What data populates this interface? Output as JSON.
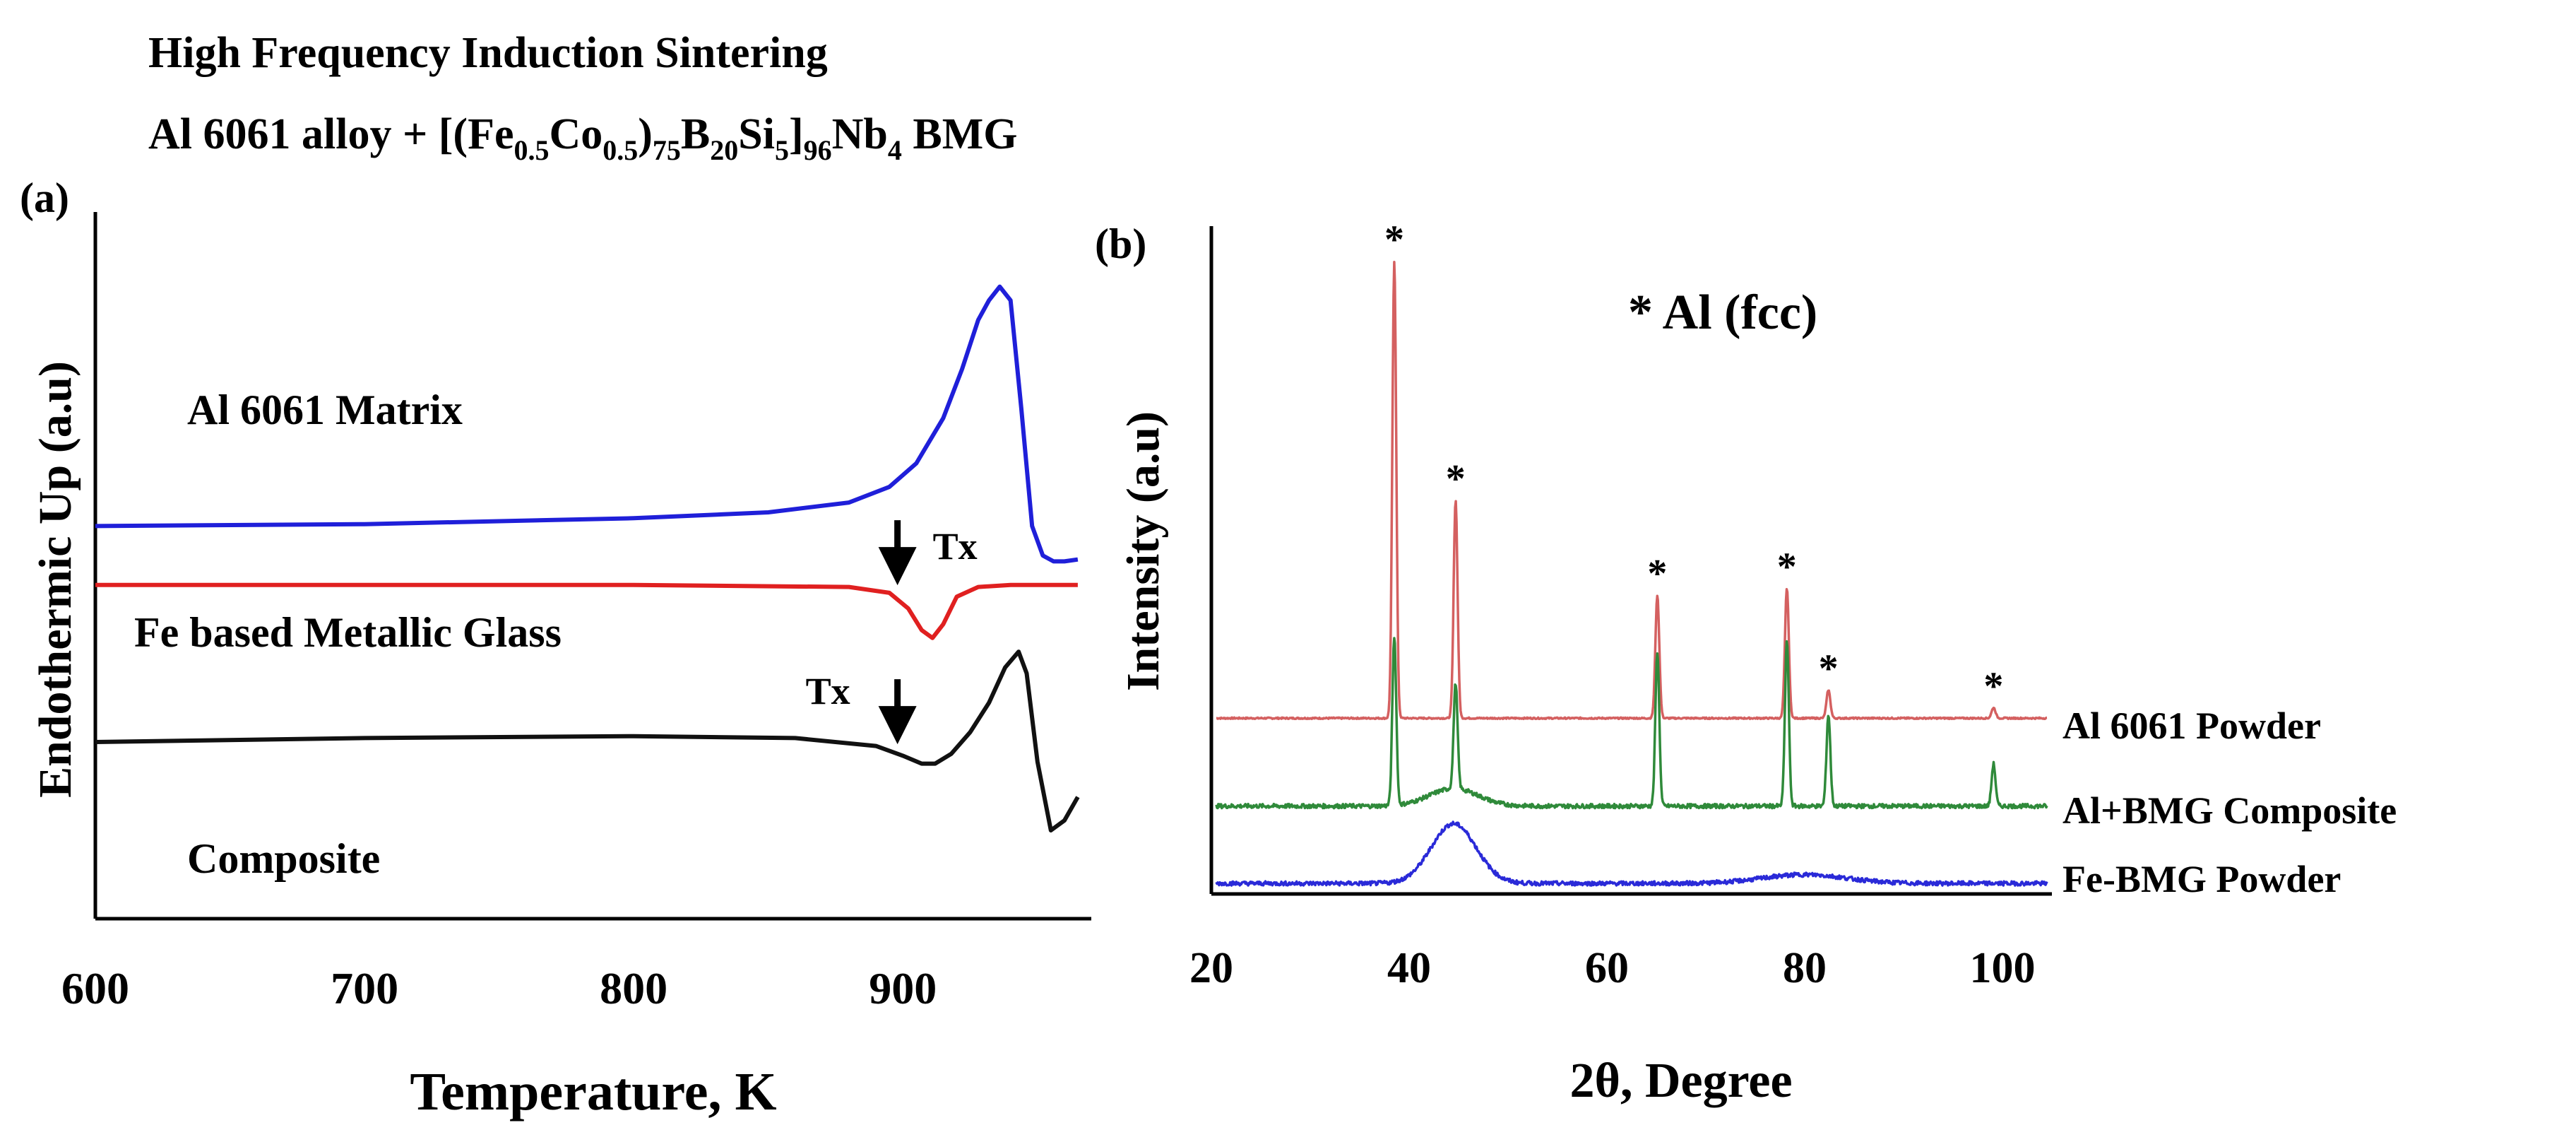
{
  "header": {
    "line1": "High Frequency Induction Sintering",
    "line2": {
      "prefix": "Al 6061 alloy + [(Fe",
      "s1": "0.5",
      "m1": "Co",
      "s2": "0.5",
      "m2": ")",
      "s3": "75",
      "m3": "B",
      "s4": "20",
      "m4": "Si",
      "s5": "5",
      "m5": "]",
      "s6": "96",
      "m6": "Nb",
      "s7": "4",
      "suffix": " BMG"
    }
  },
  "chart_data": [
    {
      "panel": "(a)",
      "type": "line",
      "title": "",
      "xlabel": "Temperature, K",
      "ylabel": "Endothermic Up (a.u)",
      "xlim": [
        600,
        970
      ],
      "xticks": [
        "600",
        "700",
        "800",
        "900"
      ],
      "yticks": [],
      "grid": false,
      "series": [
        {
          "name": "Al 6061 Matrix",
          "color": "#1f1fd9",
          "x": [
            600,
            700,
            800,
            850,
            880,
            895,
            905,
            915,
            922,
            928,
            932,
            936,
            940,
            944,
            948,
            952,
            956,
            960,
            965
          ],
          "y": [
            2.0,
            2.01,
            2.04,
            2.07,
            2.12,
            2.2,
            2.32,
            2.55,
            2.8,
            3.05,
            3.15,
            3.22,
            3.15,
            2.6,
            2.0,
            1.85,
            1.82,
            1.82,
            1.83
          ]
        },
        {
          "name": "Fe based Metallic Glass",
          "color": "#e02020",
          "x": [
            600,
            700,
            800,
            880,
            895,
            902,
            907,
            911,
            915,
            920,
            928,
            940,
            965
          ],
          "y": [
            1.7,
            1.7,
            1.7,
            1.69,
            1.66,
            1.58,
            1.47,
            1.43,
            1.5,
            1.64,
            1.69,
            1.7,
            1.7
          ]
        },
        {
          "name": "Composite",
          "color": "#111111",
          "x": [
            600,
            700,
            800,
            860,
            890,
            900,
            907,
            912,
            918,
            925,
            932,
            938,
            943,
            946,
            950,
            955,
            960,
            965
          ],
          "y": [
            0.9,
            0.92,
            0.93,
            0.92,
            0.88,
            0.83,
            0.79,
            0.79,
            0.84,
            0.95,
            1.1,
            1.28,
            1.36,
            1.25,
            0.8,
            0.45,
            0.5,
            0.62
          ]
        }
      ],
      "annotations": [
        {
          "text": "Tx",
          "x": 898,
          "y": 1.76,
          "arrow": "down"
        },
        {
          "text": "Tx",
          "x": 898,
          "y": 0.95,
          "arrow": "down"
        }
      ]
    },
    {
      "panel": "(b)",
      "type": "line",
      "title": "",
      "xlabel": "2θ, Degree",
      "ylabel": "Intensity (a.u)",
      "xlim": [
        20,
        105
      ],
      "xticks": [
        "20",
        "40",
        "60",
        "80",
        "100"
      ],
      "yticks": [],
      "grid": false,
      "legend_note": "* Al (fcc)",
      "series": [
        {
          "name": "Al 6061 Powder",
          "color": "#d46060",
          "baseline": 0.5,
          "peaks": [
            {
              "pos": 38.5,
              "height": 1.3
            },
            {
              "pos": 44.7,
              "height": 0.62
            },
            {
              "pos": 65.1,
              "height": 0.35
            },
            {
              "pos": 78.2,
              "height": 0.37
            },
            {
              "pos": 82.4,
              "height": 0.08
            },
            {
              "pos": 99.1,
              "height": 0.03
            }
          ]
        },
        {
          "name": "Al+BMG  Composite",
          "color": "#2f8a3a",
          "baseline": 0.25,
          "hump": {
            "pos": 44.5,
            "height": 0.05,
            "width": 3.5
          },
          "peaks": [
            {
              "pos": 38.5,
              "height": 0.48
            },
            {
              "pos": 44.7,
              "height": 0.3
            },
            {
              "pos": 65.1,
              "height": 0.44
            },
            {
              "pos": 78.2,
              "height": 0.47
            },
            {
              "pos": 82.4,
              "height": 0.26
            },
            {
              "pos": 99.1,
              "height": 0.12
            }
          ]
        },
        {
          "name": "Fe-BMG Powder",
          "color": "#2a2ad8",
          "baseline": 0.03,
          "hump": {
            "pos": 44.5,
            "height": 0.17,
            "width": 3.2
          },
          "hump2": {
            "pos": 80,
            "height": 0.025,
            "width": 6
          },
          "peaks": []
        }
      ],
      "peak_markers": [
        {
          "text": "*",
          "x": 38.5
        },
        {
          "text": "*",
          "x": 44.7
        },
        {
          "text": "*",
          "x": 65.1
        },
        {
          "text": "*",
          "x": 78.2
        },
        {
          "text": "*",
          "x": 82.4
        },
        {
          "text": "*",
          "x": 99.1
        }
      ]
    }
  ]
}
